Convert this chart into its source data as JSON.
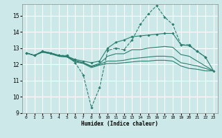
{
  "xlabel": "Humidex (Indice chaleur)",
  "ylabel": "",
  "xlim": [
    -0.5,
    23.5
  ],
  "ylim": [
    9,
    15.7
  ],
  "yticks": [
    9,
    10,
    11,
    12,
    13,
    14,
    15
  ],
  "xticks": [
    0,
    1,
    2,
    3,
    4,
    5,
    6,
    7,
    8,
    9,
    10,
    11,
    12,
    13,
    14,
    15,
    16,
    17,
    18,
    19,
    20,
    21,
    22,
    23
  ],
  "bg_color": "#cce8e8",
  "grid_color": "#ffffff",
  "line_color": "#2a7d6e",
  "curves": [
    {
      "x": [
        0,
        1,
        2,
        3,
        4,
        5,
        6,
        7,
        8,
        9,
        10,
        11,
        12,
        13,
        14,
        15,
        16,
        17,
        18,
        19,
        20,
        21,
        22
      ],
      "y": [
        12.7,
        12.55,
        12.8,
        12.7,
        12.55,
        12.55,
        12.1,
        11.35,
        9.35,
        10.55,
        12.85,
        13.0,
        12.9,
        13.5,
        14.45,
        15.1,
        15.6,
        14.9,
        14.45,
        13.2,
        13.2,
        12.8,
        12.45
      ],
      "marker": true,
      "linestyle": "--"
    },
    {
      "x": [
        0,
        1,
        2,
        3,
        4,
        5,
        6,
        7,
        8,
        9,
        10,
        11,
        12,
        13,
        14,
        15,
        16,
        17,
        18,
        19,
        20,
        21,
        22,
        23
      ],
      "y": [
        12.7,
        12.55,
        12.8,
        12.7,
        12.55,
        12.5,
        12.3,
        12.2,
        12.1,
        12.2,
        13.0,
        13.35,
        13.5,
        13.7,
        13.75,
        13.8,
        13.85,
        13.9,
        13.9,
        13.2,
        13.15,
        12.8,
        12.45,
        11.6
      ],
      "marker": true,
      "linestyle": "-"
    },
    {
      "x": [
        0,
        1,
        2,
        3,
        4,
        5,
        6,
        7,
        8,
        9,
        10,
        11,
        12,
        13,
        14,
        15,
        16,
        17,
        18,
        19,
        20,
        21,
        22,
        23
      ],
      "y": [
        12.7,
        12.55,
        12.8,
        12.7,
        12.55,
        12.5,
        12.25,
        12.1,
        11.9,
        12.05,
        12.5,
        12.65,
        12.65,
        12.9,
        12.9,
        13.0,
        13.05,
        13.1,
        13.05,
        12.6,
        12.5,
        12.2,
        11.9,
        11.6
      ],
      "marker": false,
      "linestyle": "-"
    },
    {
      "x": [
        0,
        1,
        2,
        3,
        4,
        5,
        6,
        7,
        8,
        9,
        10,
        11,
        12,
        13,
        14,
        15,
        16,
        17,
        18,
        19,
        20,
        21,
        22,
        23
      ],
      "y": [
        12.7,
        12.55,
        12.75,
        12.65,
        12.5,
        12.45,
        12.2,
        12.1,
        11.85,
        12.0,
        12.2,
        12.2,
        12.25,
        12.35,
        12.4,
        12.45,
        12.5,
        12.5,
        12.45,
        12.1,
        12.0,
        11.9,
        11.75,
        11.6
      ],
      "marker": false,
      "linestyle": "-"
    },
    {
      "x": [
        0,
        1,
        2,
        3,
        4,
        5,
        6,
        7,
        8,
        9,
        10,
        11,
        12,
        13,
        14,
        15,
        16,
        17,
        18,
        19,
        20,
        21,
        22,
        23
      ],
      "y": [
        12.7,
        12.55,
        12.75,
        12.65,
        12.5,
        12.45,
        12.15,
        12.05,
        11.8,
        11.95,
        12.05,
        12.05,
        12.1,
        12.15,
        12.2,
        12.2,
        12.25,
        12.25,
        12.2,
        11.9,
        11.75,
        11.7,
        11.6,
        11.6
      ],
      "marker": false,
      "linestyle": "-"
    }
  ]
}
